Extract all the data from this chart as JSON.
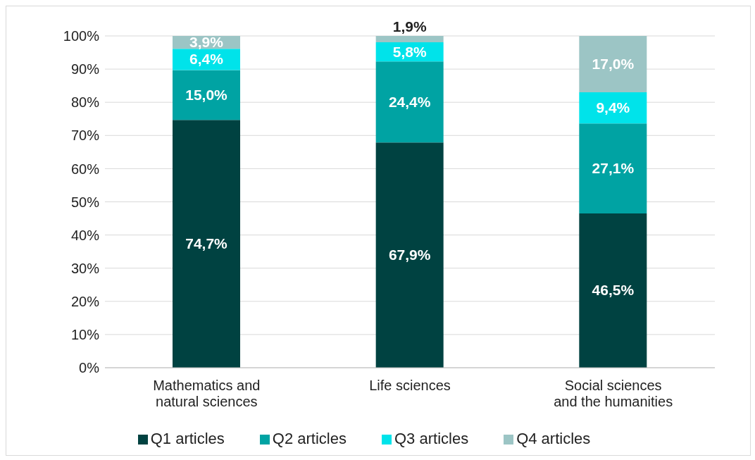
{
  "chart_data": {
    "type": "bar",
    "stacked": true,
    "categories": [
      "Mathematics and natural sciences",
      "Life sciences",
      "Social sciences and the humanities"
    ],
    "series": [
      {
        "name": "Q1 articles",
        "color": "#004241",
        "values": [
          74.7,
          67.9,
          46.5
        ],
        "value_labels": [
          "74,7%",
          "67,9%",
          "46,5%"
        ]
      },
      {
        "name": "Q2 articles",
        "color": "#00a3a3",
        "values": [
          15.0,
          24.4,
          27.1
        ],
        "value_labels": [
          "15,0%",
          "24,4%",
          "27,1%"
        ]
      },
      {
        "name": "Q3 articles",
        "color": "#00e3ea",
        "values": [
          6.4,
          5.8,
          9.4
        ],
        "value_labels": [
          "6,4%",
          "5,8%",
          "9,4%"
        ]
      },
      {
        "name": "Q4 articles",
        "color": "#9cc5c5",
        "values": [
          3.9,
          1.9,
          17.0
        ],
        "value_labels": [
          "3,9%",
          "1,9%",
          "17,0%"
        ]
      }
    ],
    "ylim": [
      0,
      100
    ],
    "yticks": [
      {
        "value": 0,
        "label": "0%"
      },
      {
        "value": 10,
        "label": "10%"
      },
      {
        "value": 20,
        "label": "20%"
      },
      {
        "value": 30,
        "label": "30%"
      },
      {
        "value": 40,
        "label": "40%"
      },
      {
        "value": 50,
        "label": "50%"
      },
      {
        "value": 60,
        "label": "60%"
      },
      {
        "value": 70,
        "label": "70%"
      },
      {
        "value": 80,
        "label": "80%"
      },
      {
        "value": 90,
        "label": "90%"
      },
      {
        "value": 100,
        "label": "100%"
      }
    ],
    "grid": "y",
    "legend": "bottom"
  }
}
